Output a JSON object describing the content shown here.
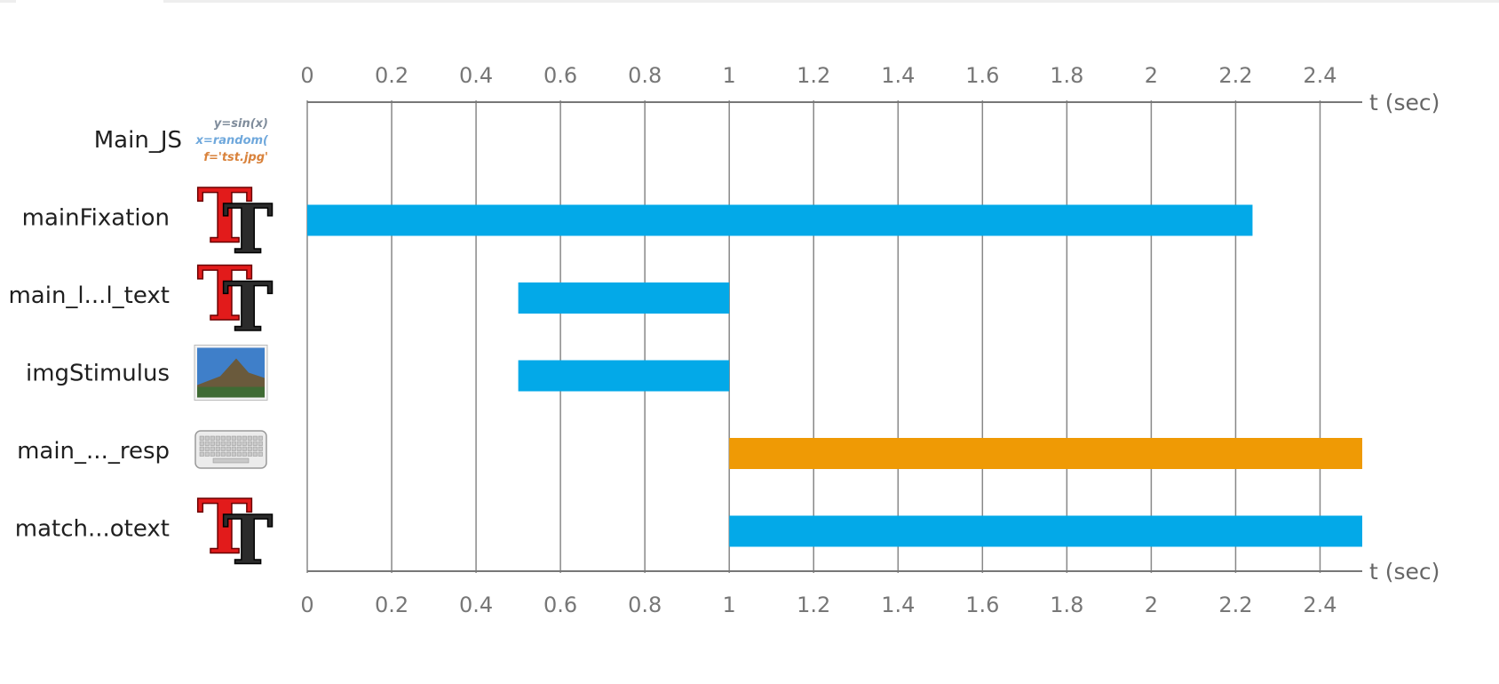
{
  "colors": {
    "visual_bar": "#03a9e8",
    "response_bar": "#ef9a05",
    "grid": "#888888",
    "axis": "#777777",
    "tick_text": "#777777"
  },
  "code_snippet": {
    "line1": "y=sin(x)",
    "line2": "x=random(",
    "line3": "f='tst.jpg'",
    "line1_color": "#7f8c9b",
    "line2_color": "#6fa8dc",
    "line3_color": "#d9823b"
  },
  "chart_data": {
    "type": "bar",
    "orientation": "horizontal-timeline",
    "xlabel": "t (sec)",
    "xlim": [
      0,
      2.5
    ],
    "ticks": [
      "0",
      "0.2",
      "0.4",
      "0.6",
      "0.8",
      "1",
      "1.2",
      "1.4",
      "1.6",
      "1.8",
      "2",
      "2.2",
      "2.4"
    ],
    "components": [
      {
        "label": "Main_JS",
        "icon": "code-icon",
        "start": null,
        "end": null,
        "color": ""
      },
      {
        "label": "mainFixation",
        "icon": "text-stim-icon",
        "start": 0,
        "end": 2.24,
        "color": "#03a9e8"
      },
      {
        "label": "main_l...l_text",
        "icon": "text-stim-icon",
        "start": 0.5,
        "end": 1.0,
        "color": "#03a9e8"
      },
      {
        "label": "imgStimulus",
        "icon": "image-icon",
        "start": 0.5,
        "end": 1.0,
        "color": "#03a9e8"
      },
      {
        "label": "main_..._resp",
        "icon": "keyboard-icon",
        "start": 1.0,
        "end": 2.5,
        "color": "#ef9a05"
      },
      {
        "label": "match...otext",
        "icon": "text-stim-icon",
        "start": 1.0,
        "end": 2.5,
        "color": "#03a9e8"
      }
    ]
  }
}
